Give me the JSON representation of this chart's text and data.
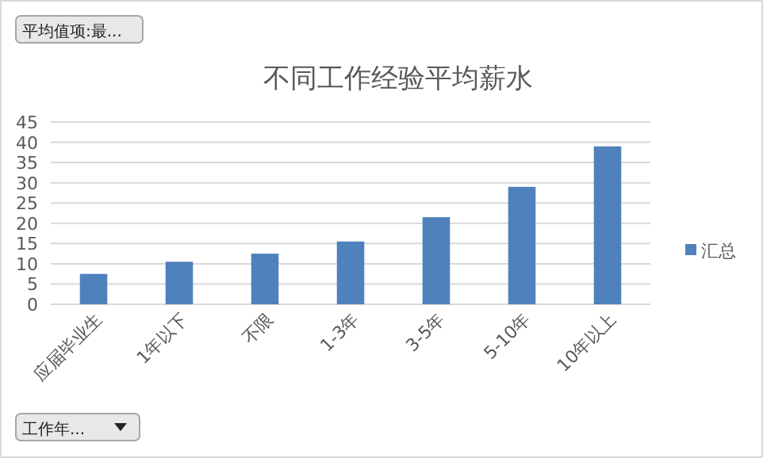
{
  "chart_data": {
    "type": "bar",
    "title": "不同工作经验平均薪水",
    "categories": [
      "应届毕业生",
      "1年以下",
      "不限",
      "1-3年",
      "3-5年",
      "5-10年",
      "10年以上"
    ],
    "series": [
      {
        "name": "汇总",
        "color": "#4f81bd",
        "values": [
          7.5,
          10.5,
          12.5,
          15.5,
          21.5,
          29,
          39
        ]
      }
    ],
    "ylim": [
      0,
      45
    ],
    "yticks": [
      0,
      5,
      10,
      15,
      20,
      25,
      30,
      35,
      40,
      45
    ],
    "grid": "y",
    "legend": "right",
    "annotations": [
      "平均值项:最...",
      "工作年..."
    ]
  }
}
